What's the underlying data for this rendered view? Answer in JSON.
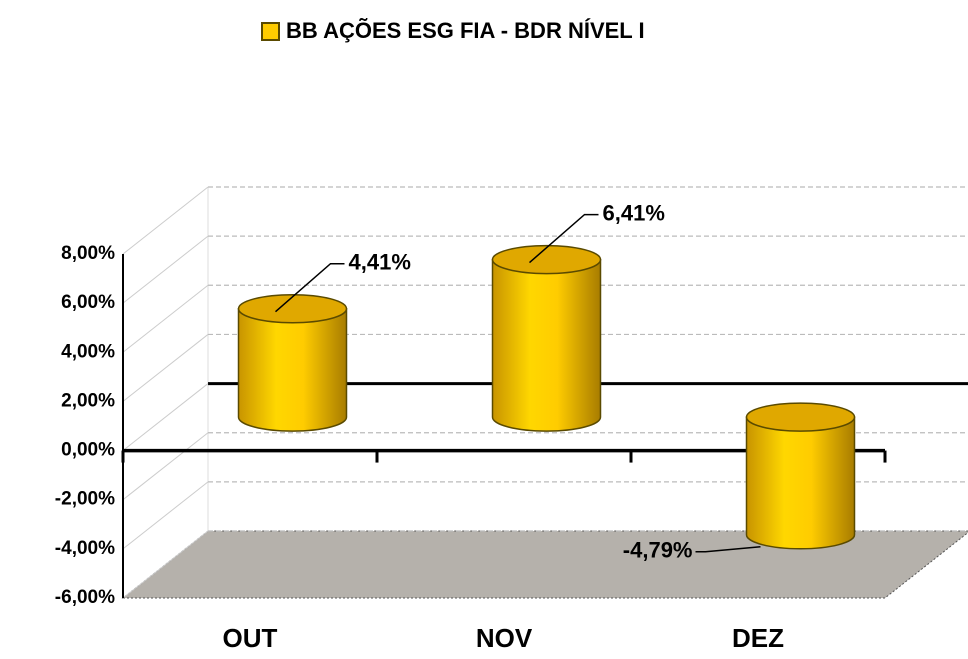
{
  "chart_data": {
    "type": "bar3d",
    "categories": [
      "OUT",
      "NOV",
      "DEZ"
    ],
    "series": [
      {
        "name": "BB AÇÕES ESG FIA - BDR NÍVEL I",
        "color": "#ffcc00",
        "values": [
          4.41,
          6.41,
          -4.79
        ],
        "value_labels": [
          "4,41%",
          "6,41%",
          "-4,79%"
        ]
      }
    ],
    "ylim": [
      -6,
      8
    ],
    "yticks": [
      {
        "value": -6,
        "label": "-6,00%"
      },
      {
        "value": -4,
        "label": "-4,00%"
      },
      {
        "value": -2,
        "label": "-2,00%"
      },
      {
        "value": 0,
        "label": "0,00%"
      },
      {
        "value": 2,
        "label": "2,00%"
      },
      {
        "value": 4,
        "label": "4,00%"
      },
      {
        "value": 6,
        "label": "6,00%"
      },
      {
        "value": 8,
        "label": "8,00%"
      }
    ],
    "grid": true,
    "legend": "top"
  }
}
